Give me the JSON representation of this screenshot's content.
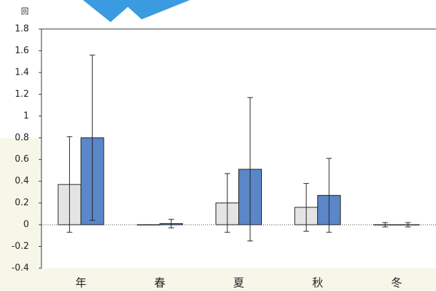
{
  "chart_data": {
    "type": "bar",
    "unit_label": "回",
    "categories": [
      "年",
      "春",
      "夏",
      "秋",
      "冬"
    ],
    "series": [
      {
        "color": "#e4e4e4",
        "values": [
          0.37,
          0,
          0.2,
          0.16,
          0
        ],
        "errors": [
          0.44,
          0,
          0.27,
          0.22,
          0.02
        ]
      },
      {
        "color": "#5b86c8",
        "values": [
          0.8,
          0.01,
          0.51,
          0.27,
          0
        ],
        "errors": [
          0.76,
          0.04,
          0.66,
          0.34,
          0.02
        ]
      }
    ],
    "ylim": [
      -0.4,
      1.8
    ],
    "yticks": [
      -0.4,
      -0.2,
      0,
      0.2,
      0.4,
      0.6,
      0.8,
      1,
      1.2,
      1.4,
      1.6,
      1.8
    ]
  }
}
